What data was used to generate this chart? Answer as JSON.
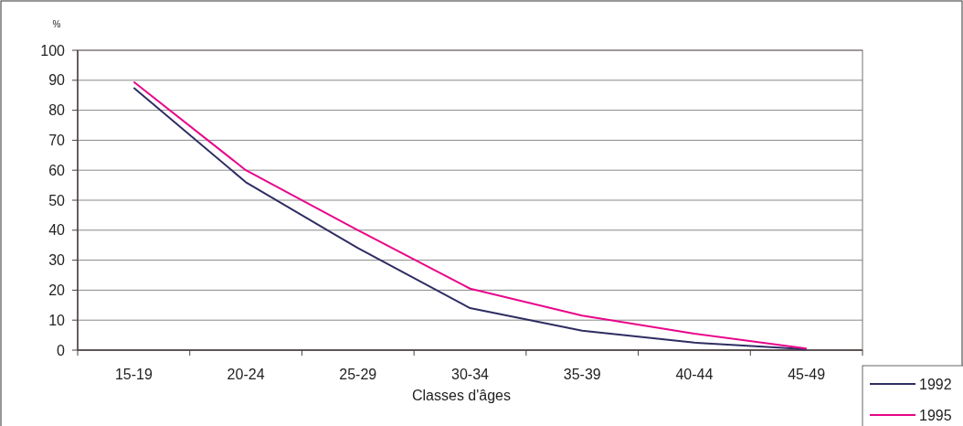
{
  "chart_data": {
    "type": "line",
    "ylabel": "%",
    "xlabel": "Classes d'âges",
    "categories": [
      "15-19",
      "20-24",
      "25-29",
      "30-34",
      "35-39",
      "40-44",
      "45-49"
    ],
    "series": [
      {
        "name": "1992",
        "color": "#2e2d62",
        "values": [
          87.5,
          56,
          34,
          14,
          6.5,
          2.5,
          0.3
        ]
      },
      {
        "name": "1995",
        "color": "#e8068a",
        "values": [
          89.5,
          60,
          40,
          20.5,
          11.5,
          5.5,
          0.5
        ]
      }
    ],
    "ylim": [
      0,
      100
    ],
    "yticks": [
      0,
      10,
      20,
      30,
      40,
      50,
      60,
      70,
      80,
      90,
      100
    ],
    "grid": "y",
    "legend": "bottom right",
    "line_style": "solid",
    "marker": "none"
  }
}
